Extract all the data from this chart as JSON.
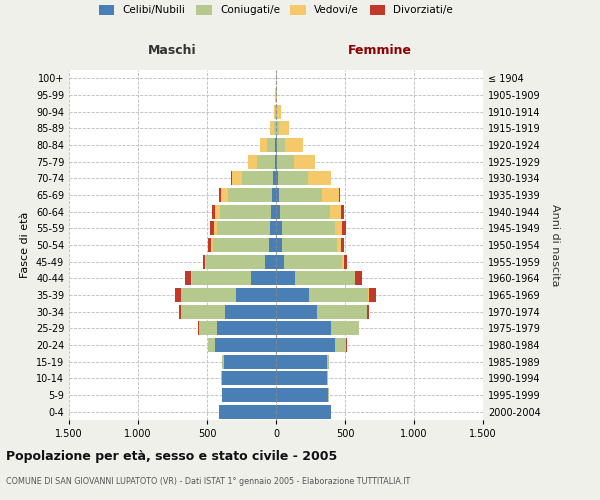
{
  "age_groups": [
    "0-4",
    "5-9",
    "10-14",
    "15-19",
    "20-24",
    "25-29",
    "30-34",
    "35-39",
    "40-44",
    "45-49",
    "50-54",
    "55-59",
    "60-64",
    "65-69",
    "70-74",
    "75-79",
    "80-84",
    "85-89",
    "90-94",
    "95-99",
    "100+"
  ],
  "birth_years": [
    "2000-2004",
    "1995-1999",
    "1990-1994",
    "1985-1989",
    "1980-1984",
    "1975-1979",
    "1970-1974",
    "1965-1969",
    "1960-1964",
    "1955-1959",
    "1950-1954",
    "1945-1949",
    "1940-1944",
    "1935-1939",
    "1930-1934",
    "1925-1929",
    "1920-1924",
    "1915-1919",
    "1910-1914",
    "1905-1909",
    "≤ 1904"
  ],
  "males": {
    "celibi": [
      410,
      390,
      390,
      380,
      440,
      430,
      370,
      290,
      180,
      80,
      50,
      40,
      35,
      30,
      20,
      10,
      5,
      0,
      0,
      0,
      0
    ],
    "coniugati": [
      0,
      3,
      5,
      10,
      50,
      130,
      320,
      400,
      430,
      430,
      410,
      390,
      370,
      320,
      230,
      130,
      60,
      15,
      5,
      2,
      0
    ],
    "vedovi": [
      0,
      0,
      0,
      0,
      0,
      0,
      1,
      2,
      3,
      5,
      10,
      20,
      40,
      50,
      70,
      60,
      50,
      30,
      10,
      2,
      0
    ],
    "divorziati": [
      0,
      0,
      0,
      0,
      2,
      3,
      10,
      40,
      50,
      15,
      20,
      25,
      20,
      10,
      5,
      3,
      2,
      0,
      0,
      0,
      0
    ]
  },
  "females": {
    "nubili": [
      400,
      380,
      370,
      370,
      430,
      400,
      300,
      240,
      140,
      60,
      45,
      40,
      30,
      25,
      15,
      10,
      5,
      2,
      0,
      0,
      0
    ],
    "coniugate": [
      0,
      2,
      5,
      15,
      80,
      200,
      360,
      430,
      430,
      420,
      400,
      390,
      360,
      310,
      220,
      120,
      60,
      20,
      8,
      2,
      0
    ],
    "vedove": [
      0,
      0,
      0,
      0,
      0,
      1,
      2,
      3,
      5,
      15,
      25,
      50,
      80,
      120,
      160,
      150,
      130,
      70,
      30,
      5,
      1
    ],
    "divorziate": [
      0,
      0,
      0,
      0,
      2,
      3,
      15,
      50,
      50,
      20,
      25,
      30,
      25,
      10,
      5,
      3,
      2,
      0,
      0,
      0,
      0
    ]
  },
  "colors": {
    "celibi_nubili": "#4a7fb5",
    "coniugati": "#b5c98e",
    "vedovi": "#f5c96a",
    "divorziati": "#c0392b"
  },
  "xlim": 1500,
  "title": "Popolazione per età, sesso e stato civile - 2005",
  "subtitle": "COMUNE DI SAN GIOVANNI LUPATOTO (VR) - Dati ISTAT 1° gennaio 2005 - Elaborazione TUTTITALIA.IT",
  "ylabel_left": "Fasce di età",
  "ylabel_right": "Anni di nascita",
  "xlabel_left": "Maschi",
  "xlabel_right": "Femmine",
  "bg_color": "#f0f0eb",
  "plot_bg": "#ffffff"
}
